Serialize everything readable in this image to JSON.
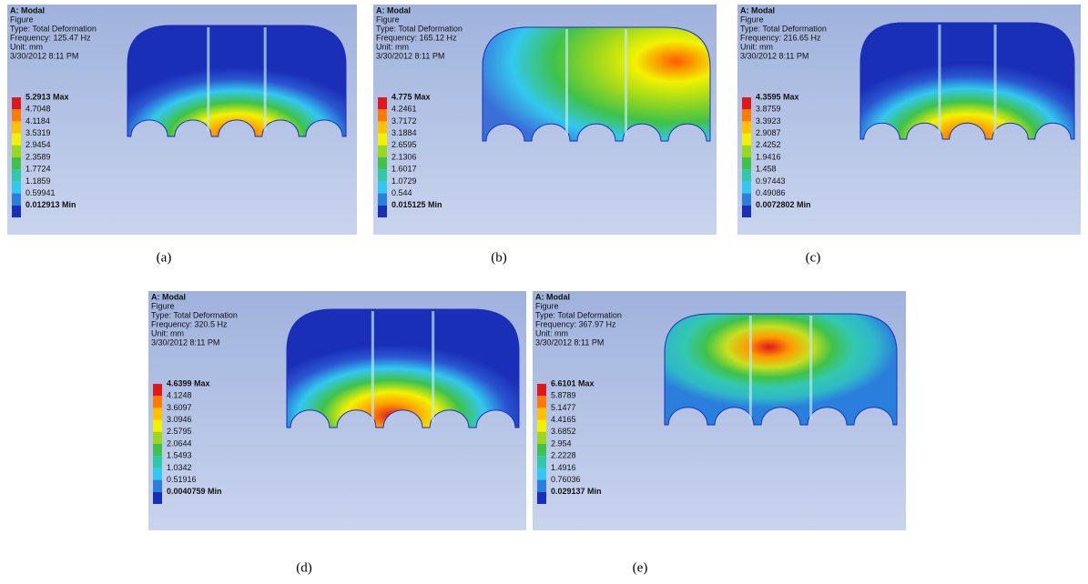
{
  "panels": [
    {
      "header": {
        "title": "A: Modal",
        "lines": [
          "Figure",
          "Type: Total Deformation",
          "Frequency: 125.47 Hz",
          "Unit: mm",
          "3/30/2012 8:11 PM"
        ]
      },
      "legend": {
        "max": "5.2913 Max",
        "levels": [
          "4.7048",
          "4.1184",
          "3.5319",
          "2.9454",
          "2.3589",
          "1.7724",
          "1.1859",
          "0.59941"
        ],
        "min": "0.012913 Min"
      },
      "caption": "(a)"
    },
    {
      "header": {
        "title": "A: Modal",
        "lines": [
          "Figure",
          "Type: Total Deformation",
          "Frequency: 165.12 Hz",
          "Unit: mm",
          "3/30/2012 8:11 PM"
        ]
      },
      "legend": {
        "max": "4.775 Max",
        "levels": [
          "4.2461",
          "3.7172",
          "3.1884",
          "2.6595",
          "2.1306",
          "1.6017",
          "1.0729",
          "0.544"
        ],
        "min": "0.015125 Min"
      },
      "caption": "(b)"
    },
    {
      "header": {
        "title": "A: Modal",
        "lines": [
          "Figure",
          "Type: Total Deformation",
          "Frequency: 216.65 Hz",
          "Unit: mm",
          "3/30/2012 8:11 PM"
        ]
      },
      "legend": {
        "max": "4.3595 Max",
        "levels": [
          "3.8759",
          "3.3923",
          "2.9087",
          "2.4252",
          "1.9416",
          "1.458",
          "0.97443",
          "0.49086"
        ],
        "min": "0.0072802 Min"
      },
      "caption": "(c)"
    },
    {
      "header": {
        "title": "A: Modal",
        "lines": [
          "Figure",
          "Type: Total Deformation",
          "Frequency: 320.5 Hz",
          "Unit: mm",
          "3/30/2012 8:11 PM"
        ]
      },
      "legend": {
        "max": "4.6399 Max",
        "levels": [
          "4.1248",
          "3.6097",
          "3.0946",
          "2.5795",
          "2.0644",
          "1.5493",
          "1.0342",
          "0.51916"
        ],
        "min": "0.0040759 Min"
      },
      "caption": "(d)"
    },
    {
      "header": {
        "title": "A: Modal",
        "lines": [
          "Figure",
          "Type: Total Deformation",
          "Frequency: 367.97 Hz",
          "Unit: mm",
          "3/30/2012 8:11 PM"
        ]
      },
      "legend": {
        "max": "6.6101 Max",
        "levels": [
          "5.8789",
          "5.1477",
          "4.4165",
          "3.6852",
          "2.954",
          "2.2228",
          "1.4916",
          "0.76036"
        ],
        "min": "0.029137 Min"
      },
      "caption": "(e)"
    }
  ]
}
